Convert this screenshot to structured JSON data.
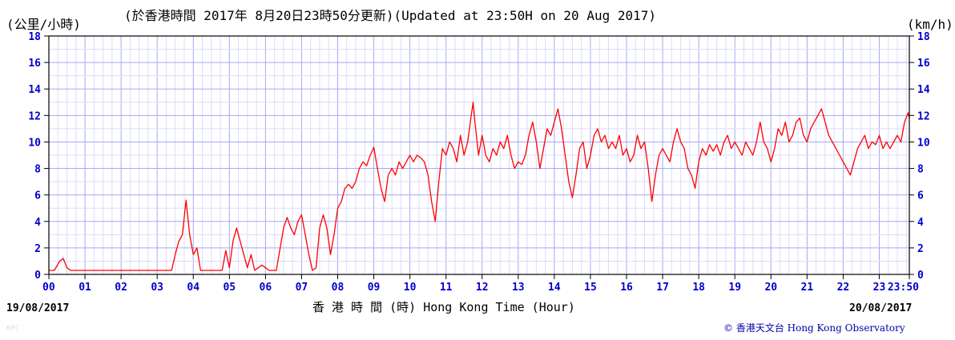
{
  "header": {
    "unit_left": "(公里/小時)",
    "title": "(於香港時間 2017年 8月20日23時50分更新)(Updated at 23:50H on 20 Aug 2017)",
    "unit_right": "(km/h)"
  },
  "footer": {
    "date_start": "19/08/2017",
    "date_end": "20/08/2017",
    "xlabel": "香 港 時 間 (時) Hong Kong Time (Hour)",
    "credit": "© 香港天文台 Hong Kong Observatory",
    "watermark": "KPC"
  },
  "colors": {
    "series": "#ff0000",
    "axis_text": "#0000cc",
    "grid": "#c8c8ff",
    "frame": "#000000"
  },
  "chart_data": {
    "type": "line",
    "title": "(Updated at 23:50H on 20 Aug 2017)",
    "ylabel": "(公里/小時) / (km/h)",
    "xlabel": "香 港 時 間 (時) Hong Kong Time (Hour)",
    "xlim": [
      0,
      23.833
    ],
    "ylim": [
      0,
      18
    ],
    "grid": true,
    "x_ticks": [
      "00",
      "01",
      "02",
      "03",
      "04",
      "05",
      "06",
      "07",
      "08",
      "09",
      "10",
      "11",
      "12",
      "13",
      "14",
      "15",
      "16",
      "17",
      "18",
      "19",
      "20",
      "21",
      "22",
      "23",
      "23:50"
    ],
    "y_ticks": [
      "0",
      "2",
      "4",
      "6",
      "8",
      "10",
      "12",
      "14",
      "16",
      "18"
    ],
    "series": [
      {
        "points": [
          [
            0,
            0.3
          ],
          [
            0.15,
            0.3
          ],
          [
            0.3,
            1.0
          ],
          [
            0.4,
            1.2
          ],
          [
            0.5,
            0.5
          ],
          [
            0.6,
            0.3
          ],
          [
            1.0,
            0.3
          ],
          [
            2.0,
            0.3
          ],
          [
            3.0,
            0.3
          ],
          [
            3.4,
            0.3
          ],
          [
            3.5,
            1.5
          ],
          [
            3.6,
            2.5
          ],
          [
            3.7,
            3.0
          ],
          [
            3.8,
            5.6
          ],
          [
            3.9,
            3.0
          ],
          [
            4.0,
            1.5
          ],
          [
            4.1,
            2.0
          ],
          [
            4.2,
            0.3
          ],
          [
            4.8,
            0.3
          ],
          [
            4.9,
            1.8
          ],
          [
            5.0,
            0.5
          ],
          [
            5.1,
            2.5
          ],
          [
            5.2,
            3.5
          ],
          [
            5.3,
            2.5
          ],
          [
            5.4,
            1.5
          ],
          [
            5.5,
            0.5
          ],
          [
            5.6,
            1.5
          ],
          [
            5.7,
            0.3
          ],
          [
            5.8,
            0.5
          ],
          [
            5.9,
            0.7
          ],
          [
            6.0,
            0.5
          ],
          [
            6.1,
            0.3
          ],
          [
            6.3,
            0.3
          ],
          [
            6.5,
            3.5
          ],
          [
            6.6,
            4.3
          ],
          [
            6.7,
            3.5
          ],
          [
            6.8,
            3.0
          ],
          [
            6.9,
            4.0
          ],
          [
            7.0,
            4.5
          ],
          [
            7.1,
            3.0
          ],
          [
            7.2,
            1.5
          ],
          [
            7.3,
            0.3
          ],
          [
            7.4,
            0.5
          ],
          [
            7.5,
            3.5
          ],
          [
            7.6,
            4.5
          ],
          [
            7.7,
            3.5
          ],
          [
            7.8,
            1.5
          ],
          [
            7.9,
            3.0
          ],
          [
            8.0,
            5.0
          ],
          [
            8.1,
            5.5
          ],
          [
            8.2,
            6.5
          ],
          [
            8.3,
            6.8
          ],
          [
            8.4,
            6.5
          ],
          [
            8.5,
            7.0
          ],
          [
            8.6,
            8.0
          ],
          [
            8.7,
            8.5
          ],
          [
            8.8,
            8.2
          ],
          [
            8.9,
            9.0
          ],
          [
            9.0,
            9.6
          ],
          [
            9.1,
            8.0
          ],
          [
            9.2,
            6.5
          ],
          [
            9.3,
            5.5
          ],
          [
            9.4,
            7.5
          ],
          [
            9.5,
            8.0
          ],
          [
            9.6,
            7.5
          ],
          [
            9.7,
            8.5
          ],
          [
            9.8,
            8.0
          ],
          [
            9.9,
            8.5
          ],
          [
            10.0,
            9.0
          ],
          [
            10.1,
            8.5
          ],
          [
            10.2,
            9.0
          ],
          [
            10.3,
            8.8
          ],
          [
            10.4,
            8.5
          ],
          [
            10.5,
            7.5
          ],
          [
            10.6,
            5.5
          ],
          [
            10.7,
            4.0
          ],
          [
            10.8,
            7.0
          ],
          [
            10.9,
            9.5
          ],
          [
            11.0,
            9.0
          ],
          [
            11.1,
            10.0
          ],
          [
            11.2,
            9.5
          ],
          [
            11.3,
            8.5
          ],
          [
            11.4,
            10.5
          ],
          [
            11.5,
            9.0
          ],
          [
            11.6,
            10.0
          ],
          [
            11.7,
            12.0
          ],
          [
            11.75,
            13.0
          ],
          [
            11.8,
            11.5
          ],
          [
            11.9,
            9.0
          ],
          [
            12.0,
            10.5
          ],
          [
            12.1,
            9.0
          ],
          [
            12.2,
            8.5
          ],
          [
            12.3,
            9.5
          ],
          [
            12.4,
            9.0
          ],
          [
            12.5,
            10.0
          ],
          [
            12.6,
            9.5
          ],
          [
            12.7,
            10.5
          ],
          [
            12.8,
            9.0
          ],
          [
            12.9,
            8.0
          ],
          [
            13.0,
            8.5
          ],
          [
            13.1,
            8.3
          ],
          [
            13.2,
            9.0
          ],
          [
            13.3,
            10.5
          ],
          [
            13.4,
            11.5
          ],
          [
            13.5,
            10.0
          ],
          [
            13.6,
            8.0
          ],
          [
            13.7,
            9.5
          ],
          [
            13.8,
            11.0
          ],
          [
            13.9,
            10.5
          ],
          [
            14.0,
            11.5
          ],
          [
            14.1,
            12.5
          ],
          [
            14.2,
            11.0
          ],
          [
            14.3,
            9.0
          ],
          [
            14.4,
            7.0
          ],
          [
            14.5,
            5.8
          ],
          [
            14.6,
            7.5
          ],
          [
            14.7,
            9.5
          ],
          [
            14.8,
            10.0
          ],
          [
            14.9,
            8.0
          ],
          [
            15.0,
            9.0
          ],
          [
            15.1,
            10.5
          ],
          [
            15.2,
            11.0
          ],
          [
            15.3,
            10.0
          ],
          [
            15.4,
            10.5
          ],
          [
            15.5,
            9.5
          ],
          [
            15.6,
            10.0
          ],
          [
            15.7,
            9.5
          ],
          [
            15.8,
            10.5
          ],
          [
            15.9,
            9.0
          ],
          [
            16.0,
            9.5
          ],
          [
            16.1,
            8.5
          ],
          [
            16.2,
            9.0
          ],
          [
            16.3,
            10.5
          ],
          [
            16.4,
            9.5
          ],
          [
            16.5,
            10.0
          ],
          [
            16.6,
            8.0
          ],
          [
            16.7,
            5.5
          ],
          [
            16.8,
            7.5
          ],
          [
            16.9,
            9.0
          ],
          [
            17.0,
            9.5
          ],
          [
            17.1,
            9.0
          ],
          [
            17.2,
            8.5
          ],
          [
            17.3,
            10.0
          ],
          [
            17.4,
            11.0
          ],
          [
            17.5,
            10.0
          ],
          [
            17.6,
            9.5
          ],
          [
            17.7,
            8.0
          ],
          [
            17.8,
            7.5
          ],
          [
            17.9,
            6.5
          ],
          [
            18.0,
            8.5
          ],
          [
            18.1,
            9.5
          ],
          [
            18.2,
            9.0
          ],
          [
            18.3,
            9.8
          ],
          [
            18.4,
            9.3
          ],
          [
            18.5,
            9.8
          ],
          [
            18.6,
            9.0
          ],
          [
            18.7,
            10.0
          ],
          [
            18.8,
            10.5
          ],
          [
            18.9,
            9.5
          ],
          [
            19.0,
            10.0
          ],
          [
            19.1,
            9.5
          ],
          [
            19.2,
            9.0
          ],
          [
            19.3,
            10.0
          ],
          [
            19.4,
            9.5
          ],
          [
            19.5,
            9.0
          ],
          [
            19.6,
            10.0
          ],
          [
            19.7,
            11.5
          ],
          [
            19.8,
            10.0
          ],
          [
            19.9,
            9.5
          ],
          [
            20.0,
            8.5
          ],
          [
            20.1,
            9.5
          ],
          [
            20.2,
            11.0
          ],
          [
            20.3,
            10.5
          ],
          [
            20.4,
            11.5
          ],
          [
            20.5,
            10.0
          ],
          [
            20.6,
            10.5
          ],
          [
            20.7,
            11.5
          ],
          [
            20.8,
            11.8
          ],
          [
            20.9,
            10.5
          ],
          [
            21.0,
            10.0
          ],
          [
            21.1,
            11.0
          ],
          [
            21.2,
            11.5
          ],
          [
            21.3,
            12.0
          ],
          [
            21.4,
            12.5
          ],
          [
            21.5,
            11.5
          ],
          [
            21.6,
            10.5
          ],
          [
            21.7,
            10.0
          ],
          [
            21.8,
            9.5
          ],
          [
            21.9,
            9.0
          ],
          [
            22.0,
            8.5
          ],
          [
            22.1,
            8.0
          ],
          [
            22.2,
            7.5
          ],
          [
            22.3,
            8.5
          ],
          [
            22.4,
            9.5
          ],
          [
            22.5,
            10.0
          ],
          [
            22.6,
            10.5
          ],
          [
            22.7,
            9.5
          ],
          [
            22.8,
            10.0
          ],
          [
            22.9,
            9.8
          ],
          [
            23.0,
            10.5
          ],
          [
            23.1,
            9.5
          ],
          [
            23.2,
            10.0
          ],
          [
            23.3,
            9.5
          ],
          [
            23.4,
            10.0
          ],
          [
            23.5,
            10.5
          ],
          [
            23.6,
            10.0
          ],
          [
            23.7,
            11.5
          ],
          [
            23.8,
            12.2
          ],
          [
            23.833,
            11.8
          ]
        ]
      }
    ]
  }
}
